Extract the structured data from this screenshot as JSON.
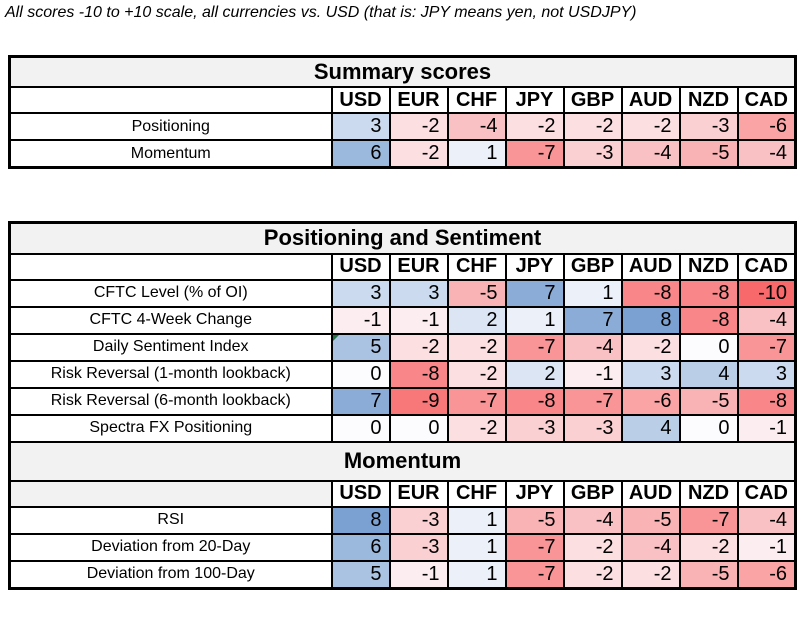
{
  "note": "All scores -10 to +10 scale, all currencies vs. USD (that is: JPY means yen, not USDJPY)",
  "color_scale": {
    "negative_max_color": "#F8696B",
    "zero_color": "#FCFCFF",
    "positive_max_color": "#5A8AC6",
    "title_bg": "#F2F2F2",
    "border_color": "#000000",
    "comment_marker_color": "#217346",
    "domain": [
      -10,
      10
    ]
  },
  "chart_data": {
    "type": "heatmap",
    "columns": [
      "USD",
      "EUR",
      "CHF",
      "JPY",
      "GBP",
      "AUD",
      "NZD",
      "CAD"
    ],
    "value_range": [
      -10,
      10
    ],
    "legend_note": "blue = positive score, red = negative score, white = 0",
    "groups": [
      {
        "title": "Summary scores",
        "box": 0,
        "header_label_gray": false,
        "rows": [
          {
            "label": "Positioning",
            "values": [
              3,
              -2,
              -4,
              -2,
              -2,
              -2,
              -3,
              -6
            ]
          },
          {
            "label": "Momentum",
            "values": [
              6,
              -2,
              1,
              -7,
              -3,
              -4,
              -5,
              -4
            ]
          }
        ]
      },
      {
        "title": "Positioning and Sentiment",
        "box": 1,
        "header_label_gray": false,
        "rows": [
          {
            "label": "CFTC Level (% of OI)",
            "values": [
              3,
              3,
              -5,
              7,
              1,
              -8,
              -8,
              -10
            ]
          },
          {
            "label": "CFTC 4-Week Change",
            "values": [
              -1,
              -1,
              2,
              1,
              7,
              8,
              -8,
              -4
            ]
          },
          {
            "label": "Daily Sentiment Index",
            "values": [
              5,
              -2,
              -2,
              -7,
              -4,
              -2,
              0,
              -7
            ],
            "comment_marker_col": 0
          },
          {
            "label": "Risk Reversal (1-month lookback)",
            "values": [
              0,
              -8,
              -2,
              2,
              -1,
              3,
              4,
              3
            ]
          },
          {
            "label": "Risk Reversal (6-month lookback)",
            "values": [
              7,
              -9,
              -7,
              -8,
              -7,
              -6,
              -5,
              -8
            ]
          },
          {
            "label": "Spectra FX Positioning",
            "values": [
              0,
              0,
              -2,
              -3,
              -3,
              4,
              0,
              -1
            ]
          }
        ]
      },
      {
        "title": "Momentum",
        "box": 1,
        "header_label_gray": true,
        "rows": [
          {
            "label": "RSI",
            "values": [
              8,
              -3,
              1,
              -5,
              -4,
              -5,
              -7,
              -4
            ]
          },
          {
            "label": "Deviation from 20-Day",
            "values": [
              6,
              -3,
              1,
              -7,
              -2,
              -4,
              -2,
              -1
            ]
          },
          {
            "label": "Deviation from 100-Day",
            "values": [
              5,
              -1,
              1,
              -7,
              -2,
              -2,
              -5,
              -6
            ]
          }
        ]
      }
    ]
  }
}
